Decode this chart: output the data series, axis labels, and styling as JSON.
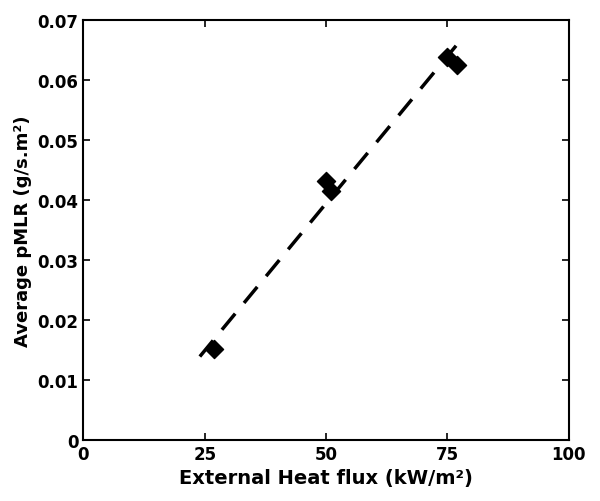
{
  "x_data": [
    27,
    50,
    51,
    75,
    77
  ],
  "y_data": [
    0.0152,
    0.0432,
    0.0415,
    0.0638,
    0.0625
  ],
  "trend_x": [
    24,
    78
  ],
  "trend_slope": 0.000982,
  "trend_intercept": -0.0097,
  "xlabel": "External Heat flux (kW/m²)",
  "ylabel": "Average pMLR (g/s.m²)",
  "xlim": [
    0,
    100
  ],
  "ylim": [
    0,
    0.07
  ],
  "xticks": [
    0,
    25,
    50,
    75,
    100
  ],
  "yticks": [
    0,
    0.01,
    0.02,
    0.03,
    0.04,
    0.05,
    0.06,
    0.07
  ],
  "ytick_labels": [
    "0",
    "0.01",
    "0.02",
    "0.03",
    "0.04",
    "0.05",
    "0.06",
    "0.07"
  ],
  "marker_color": "#000000",
  "line_color": "#000000",
  "background_color": "#ffffff",
  "marker_size": 85,
  "line_width": 2.5,
  "xlabel_fontsize": 14,
  "ylabel_fontsize": 13,
  "tick_fontsize": 12
}
